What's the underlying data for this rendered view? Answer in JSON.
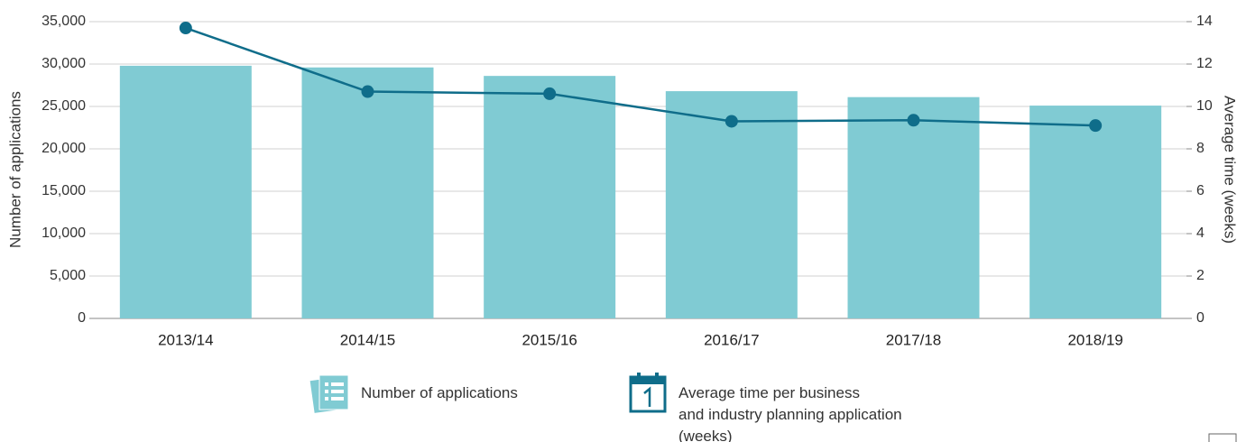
{
  "chart_data": {
    "type": "bar_line",
    "categories": [
      "2013/14",
      "2014/15",
      "2015/16",
      "2016/17",
      "2017/18",
      "2018/19"
    ],
    "ylabel": "Number of applications",
    "y2label": "Average time (weeks)",
    "ylim": [
      0,
      35000
    ],
    "yticks": [
      0,
      {
        "value": 5000,
        "label": "5,000"
      },
      {
        "value": 10000,
        "label": "10,000"
      },
      {
        "value": 15000,
        "label": "15,000"
      },
      {
        "value": 20000,
        "label": "20,000"
      },
      {
        "value": 25000,
        "label": "25,000"
      },
      {
        "value": 30000,
        "label": "30,000"
      },
      {
        "value": 35000,
        "label": "35,000"
      }
    ],
    "y2lim": [
      0,
      14
    ],
    "y2ticks": [
      0,
      2,
      4,
      6,
      8,
      10,
      12,
      14
    ],
    "grid": true,
    "series": [
      {
        "name": "Number of applications",
        "type": "bar",
        "color": "#80cbd3",
        "values": [
          29800,
          29600,
          28600,
          26800,
          26100,
          25100
        ]
      },
      {
        "name": "Average time per business\nand industry planning application\n(weeks)",
        "type": "line",
        "axis": "y2",
        "color": "#0f6d8a",
        "values": [
          13.7,
          10.7,
          10.6,
          9.3,
          9.35,
          9.1
        ]
      }
    ]
  }
}
